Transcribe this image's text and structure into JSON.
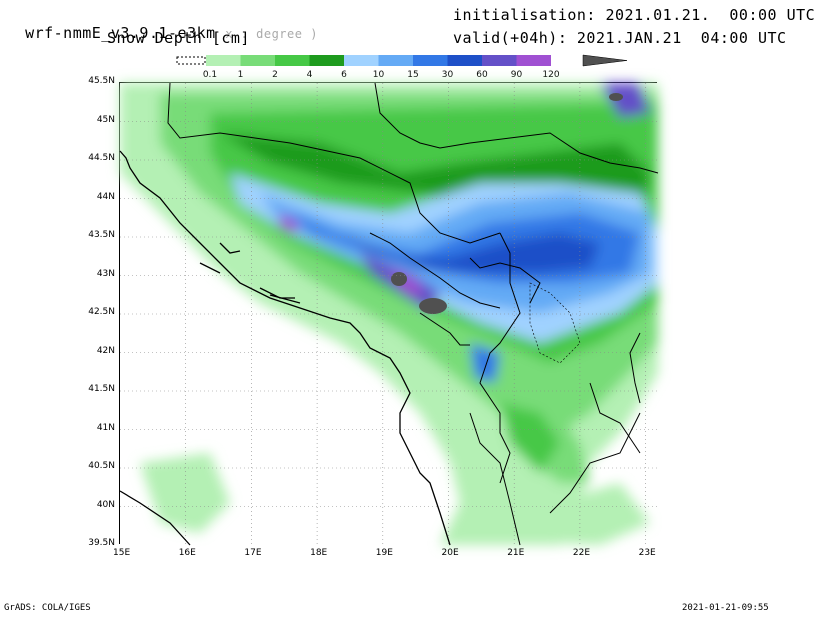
{
  "header": {
    "model_name": "wrf-nmmE_v3.9.1-e3km",
    "model_unit_hint": "x . degree )",
    "field_title": "Snow Depth [cm]",
    "init_label": "initialisation: 2021.01.21.  00:00 UTC",
    "valid_label": "valid(+04h): 2021.JAN.21  04:00 UTC"
  },
  "legend": {
    "levels": [
      "0.1",
      "1",
      "2",
      "4",
      "6",
      "10",
      "15",
      "30",
      "60",
      "90",
      "120"
    ],
    "colors": [
      "#b4f0b4",
      "#78dc78",
      "#46c846",
      "#1e9b1e",
      "#a0d2ff",
      "#64aaf5",
      "#3278e6",
      "#1e50c8",
      "#6450c8",
      "#a050d2",
      "#505050"
    ]
  },
  "axes": {
    "lat_labels": [
      "45.5N",
      "45N",
      "44.5N",
      "44N",
      "43.5N",
      "43N",
      "42.5N",
      "42N",
      "41.5N",
      "41N",
      "40.5N",
      "40N",
      "39.5N"
    ],
    "lon_labels": [
      "15E",
      "16E",
      "17E",
      "18E",
      "19E",
      "20E",
      "21E",
      "22E",
      "23E"
    ]
  },
  "footer": {
    "credit": "GrADS: COLA/IGES",
    "timestamp": "2021-01-21-09:55"
  }
}
